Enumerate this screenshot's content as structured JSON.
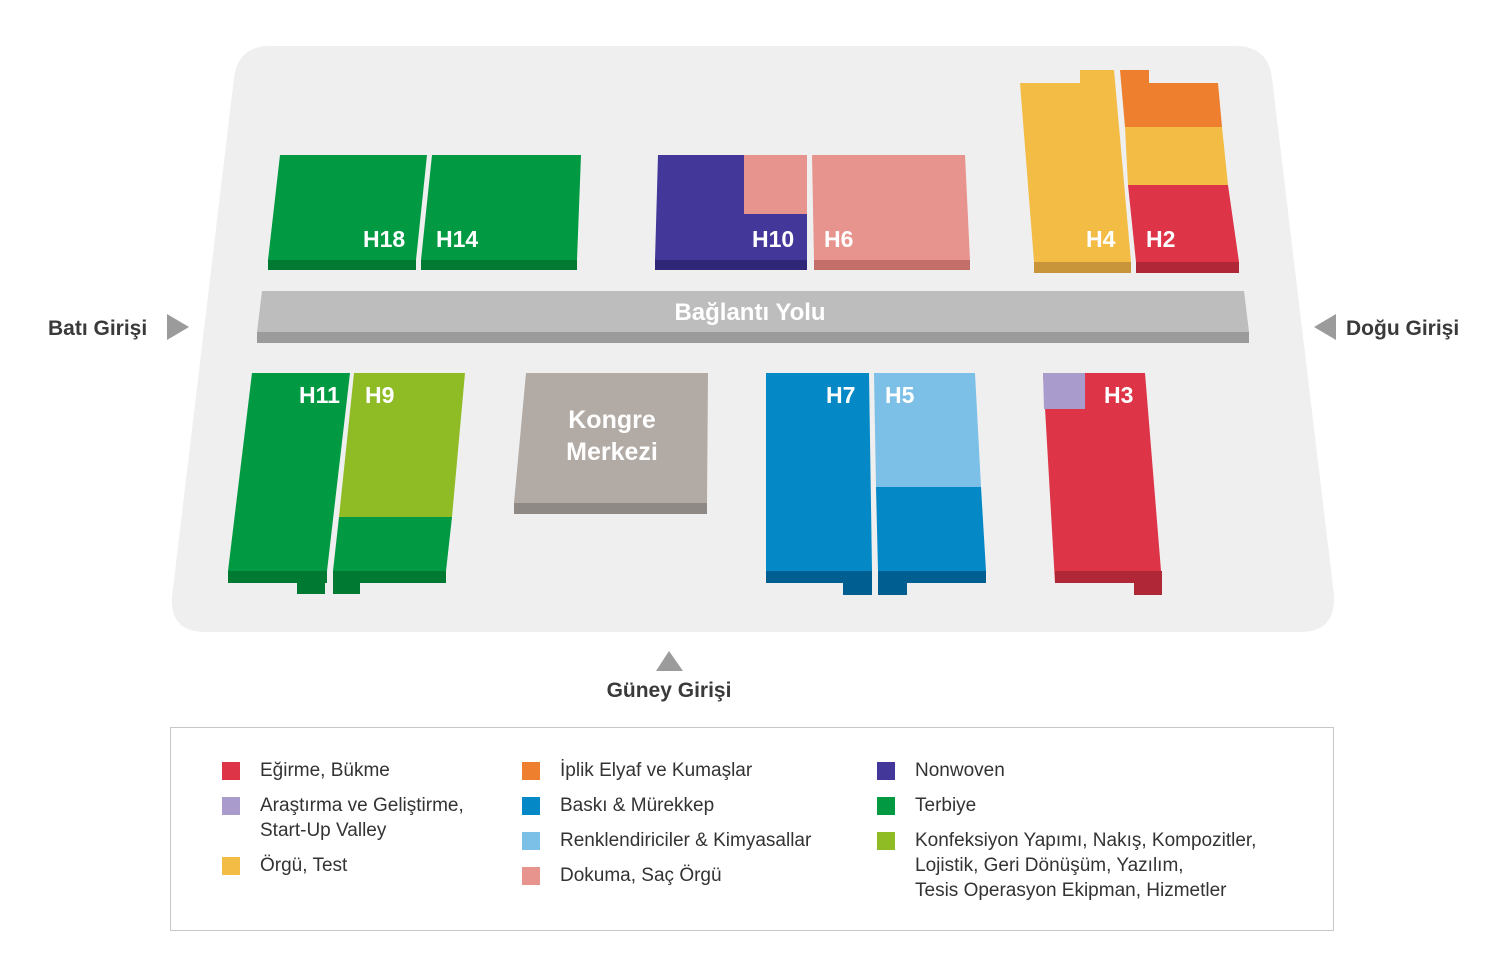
{
  "entrances": {
    "west": "Batı Girişi",
    "east": "Doğu Girişi",
    "south": "Güney Girişi"
  },
  "road": {
    "label": "Bağlantı Yolu"
  },
  "congress": {
    "line1": "Kongre",
    "line2": "Merkezi"
  },
  "halls": {
    "h18": "H18",
    "h14": "H14",
    "h10": "H10",
    "h6": "H6",
    "h4": "H4",
    "h2": "H2",
    "h11": "H11",
    "h9": "H9",
    "h7": "H7",
    "h5": "H5",
    "h3": "H3"
  },
  "colors": {
    "spinning": "#dd3447",
    "research": "#a99ccc",
    "knitting": "#f2bc45",
    "yarn": "#ed7f2e",
    "printing": "#0489c6",
    "dyes": "#7cc0e8",
    "weaving": "#e8948e",
    "nonwoven": "#43379a",
    "finishing": "#019a42",
    "apparel": "#8fbc25",
    "congress": "#b1aaa5",
    "road": "#bdbdbd",
    "site": "#efefef"
  },
  "legend": {
    "col1": [
      {
        "key": "spinning",
        "label": "Eğirme, Bükme"
      },
      {
        "key": "research",
        "label": "Araştırma ve Geliştirme,\nStart-Up Valley"
      },
      {
        "key": "knitting",
        "label": "Örgü, Test"
      }
    ],
    "col2": [
      {
        "key": "yarn",
        "label": "İplik Elyaf ve Kumaşlar"
      },
      {
        "key": "printing",
        "label": "Baskı & Mürekkep"
      },
      {
        "key": "dyes",
        "label": "Renklendiriciler & Kimyasallar"
      },
      {
        "key": "weaving",
        "label": "Dokuma, Saç Örgü"
      }
    ],
    "col3": [
      {
        "key": "nonwoven",
        "label": "Nonwoven"
      },
      {
        "key": "finishing",
        "label": "Terbiye"
      },
      {
        "key": "apparel",
        "label": "Konfeksiyon Yapımı, Nakış, Kompozitler,\nLojistik, Geri Dönüşüm, Yazılım,\nTesis Operasyon Ekipman, Hizmetler"
      }
    ]
  }
}
